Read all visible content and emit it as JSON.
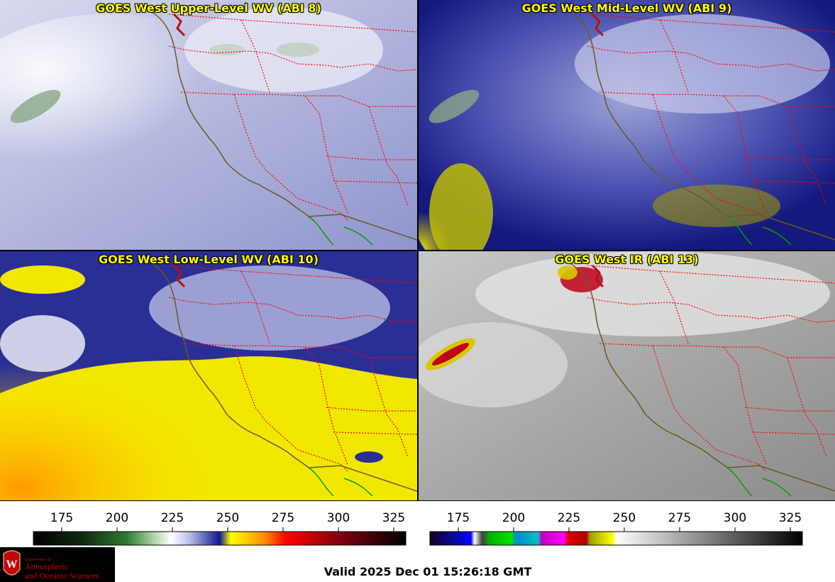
{
  "panels": [
    {
      "id": "p1",
      "title": "GOES West Upper-Level WV (ABI 8)",
      "palette": "wv-upper"
    },
    {
      "id": "p2",
      "title": "GOES West Mid-Level WV (ABI 9)",
      "palette": "wv-mid"
    },
    {
      "id": "p3",
      "title": "GOES West Low-Level WV (ABI 10)",
      "palette": "wv-low"
    },
    {
      "id": "p4",
      "title": "GOES West IR (ABI 13)",
      "palette": "ir"
    }
  ],
  "colorbars": [
    {
      "name": "water-vapor-scale",
      "ticks": [
        "175",
        "200",
        "225",
        "250",
        "275",
        "300",
        "325"
      ]
    },
    {
      "name": "infrared-scale",
      "ticks": [
        "175",
        "200",
        "225",
        "250",
        "275",
        "300",
        "325"
      ]
    }
  ],
  "logo": {
    "dept": "Department of",
    "line1": "Atmospheric",
    "line2": "and Oceanic Sciences"
  },
  "valid_time": "Valid 2025 Dec 01 15:26:18 GMT",
  "colors": {
    "title_text": "#ffff00",
    "state_borders": "#ff0000",
    "coastline": "#6b5a1e",
    "mexico_coast": "#00a000",
    "logo_red": "#c5050c"
  }
}
